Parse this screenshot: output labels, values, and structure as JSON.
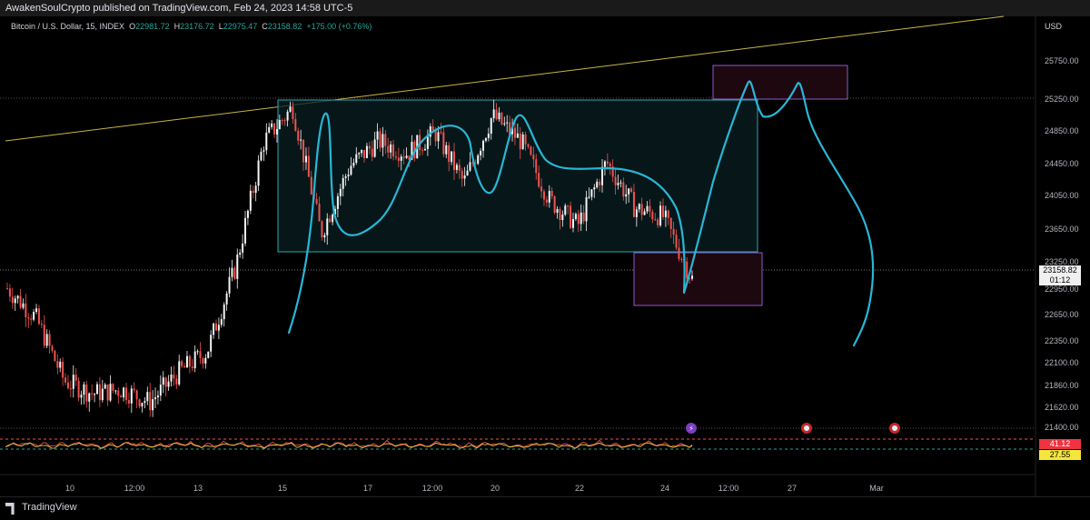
{
  "header": {
    "published_line": "AwakenSoulCrypto published on TradingView.com, Feb 24, 2023 14:58 UTC-5"
  },
  "legend": {
    "symbol": "Bitcoin / U.S. Dollar, 15, INDEX",
    "open_label": "O",
    "open": "22981.72",
    "high_label": "H",
    "high": "23176.72",
    "low_label": "L",
    "low": "22975.47",
    "close_label": "C",
    "close": "23158.82",
    "change": "+175.00 (+0.76%)"
  },
  "price_axis": {
    "currency": "USD",
    "current_price": "23158.82",
    "countdown": "01:12",
    "indicator_upper": "41.12",
    "indicator_lower": "27.55"
  },
  "footer": {
    "brand": "TradingView"
  },
  "colors": {
    "background": "#000000",
    "candle_up": "#f5f5f5",
    "candle_down": "#ef5350",
    "drawing_curve": "#29b6d6",
    "box_range": "#2aa9b8",
    "box_purple": "#8a5cc8",
    "trendline": "#c9b448"
  },
  "chart_data": {
    "type": "candlestick",
    "title": "Bitcoin / U.S. Dollar, 15, INDEX",
    "xlabel": "",
    "ylabel": "",
    "y_ticks": [
      25750,
      25250,
      24850,
      24450,
      24050,
      23650,
      23250,
      22950,
      22650,
      22350,
      22100,
      21860,
      21620,
      21400
    ],
    "x_ticks": [
      "10",
      "12:00",
      "13",
      "15",
      "17",
      "12:00",
      "20",
      "22",
      "24",
      "12:00",
      "27",
      "Mar"
    ],
    "ylim": [
      21300,
      26200
    ],
    "grid": false,
    "price_path": {
      "description_points": [
        [
          "Feb 9",
          23050
        ],
        [
          "Feb 9 12:00",
          22700
        ],
        [
          "Feb 10",
          21950
        ],
        [
          "Feb 11",
          21800
        ],
        [
          "Feb 12",
          21850
        ],
        [
          "Feb 13",
          21700
        ],
        [
          "Feb 14",
          22050
        ],
        [
          "Feb 15",
          22300
        ],
        [
          "Feb 15 12:00",
          23300
        ],
        [
          "Feb 16",
          24800
        ],
        [
          "Feb 16 12:00",
          25200
        ],
        [
          "Feb 17",
          23700
        ],
        [
          "Feb 17 12:00",
          24500
        ],
        [
          "Feb 18",
          24800
        ],
        [
          "Feb 19",
          24650
        ],
        [
          "Feb 19 12:00",
          24900
        ],
        [
          "Feb 20",
          24300
        ],
        [
          "Feb 21",
          25100
        ],
        [
          "Feb 21 12:00",
          24800
        ],
        [
          "Feb 22",
          24100
        ],
        [
          "Feb 22 12:00",
          23800
        ],
        [
          "Feb 23",
          24550
        ],
        [
          "Feb 23 12:00",
          24000
        ],
        [
          "Feb 24",
          23900
        ],
        [
          "Feb 24 12:00",
          23158.82
        ]
      ]
    },
    "indicator": {
      "upper_level": 41.12,
      "lower_level": 27.55
    }
  }
}
